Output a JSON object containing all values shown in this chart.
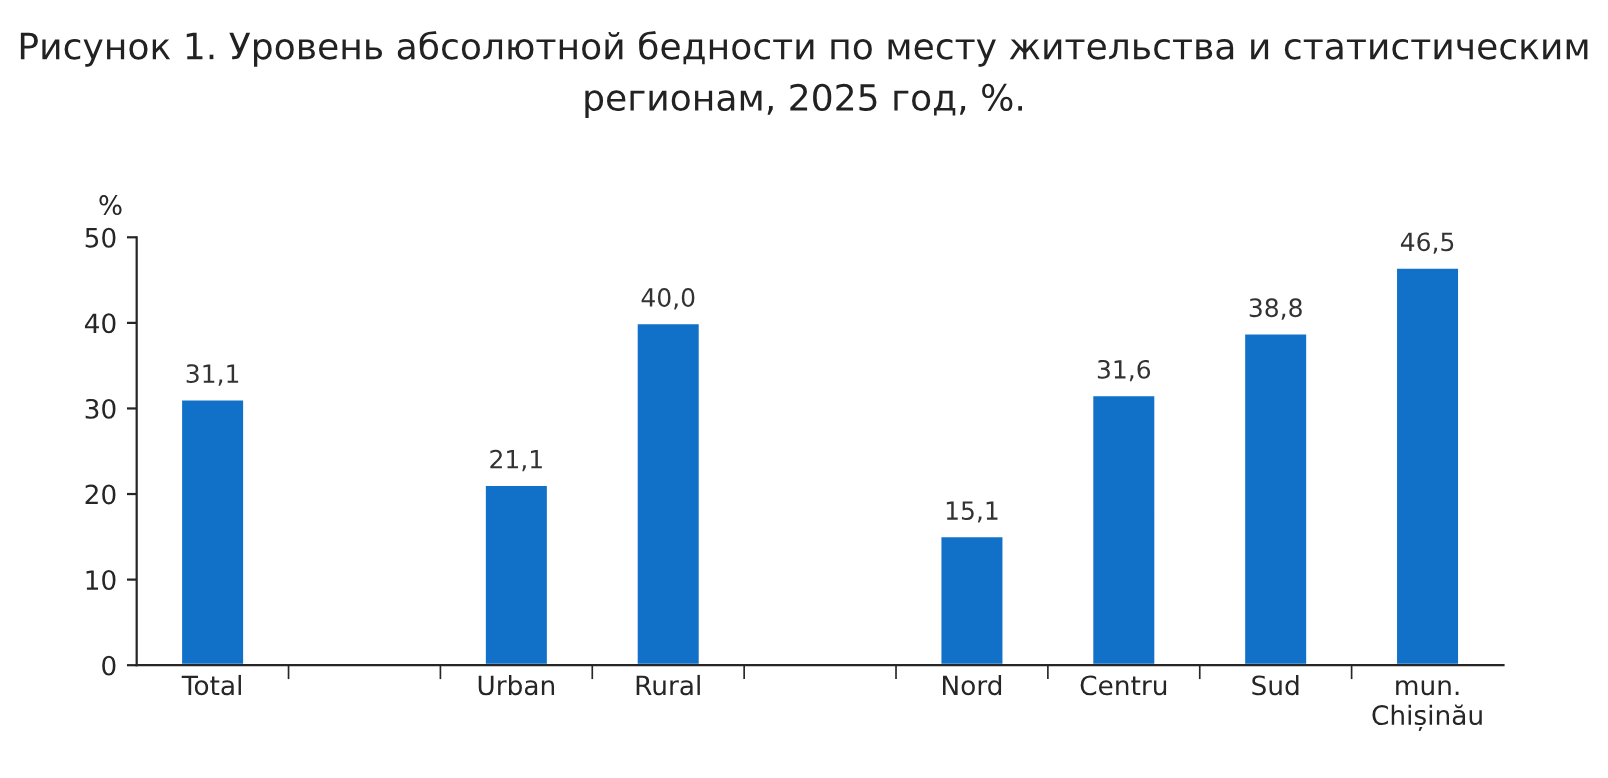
{
  "chart_data": {
    "type": "bar",
    "title": "Рисунок 1. Уровень абсолютной бедности по месту жительства и статистическим регионам, 2025 год, %.",
    "ylabel": "%",
    "categories": [
      "Total",
      null,
      "Urban",
      "Rural",
      null,
      "Nord",
      "Centru",
      "Sud",
      "mun.\nChișinău"
    ],
    "values": [
      31.1,
      null,
      21.1,
      40.0,
      null,
      15.1,
      31.6,
      38.8,
      46.5
    ],
    "value_labels": [
      "31,1",
      null,
      "21,1",
      "40,0",
      null,
      "15,1",
      "31,6",
      "38,8",
      "46,5"
    ],
    "color": "#1170c8",
    "ylim": [
      0,
      50
    ],
    "yticks": [
      0,
      10,
      20,
      30,
      40,
      50
    ],
    "grid": false,
    "legend": false
  }
}
